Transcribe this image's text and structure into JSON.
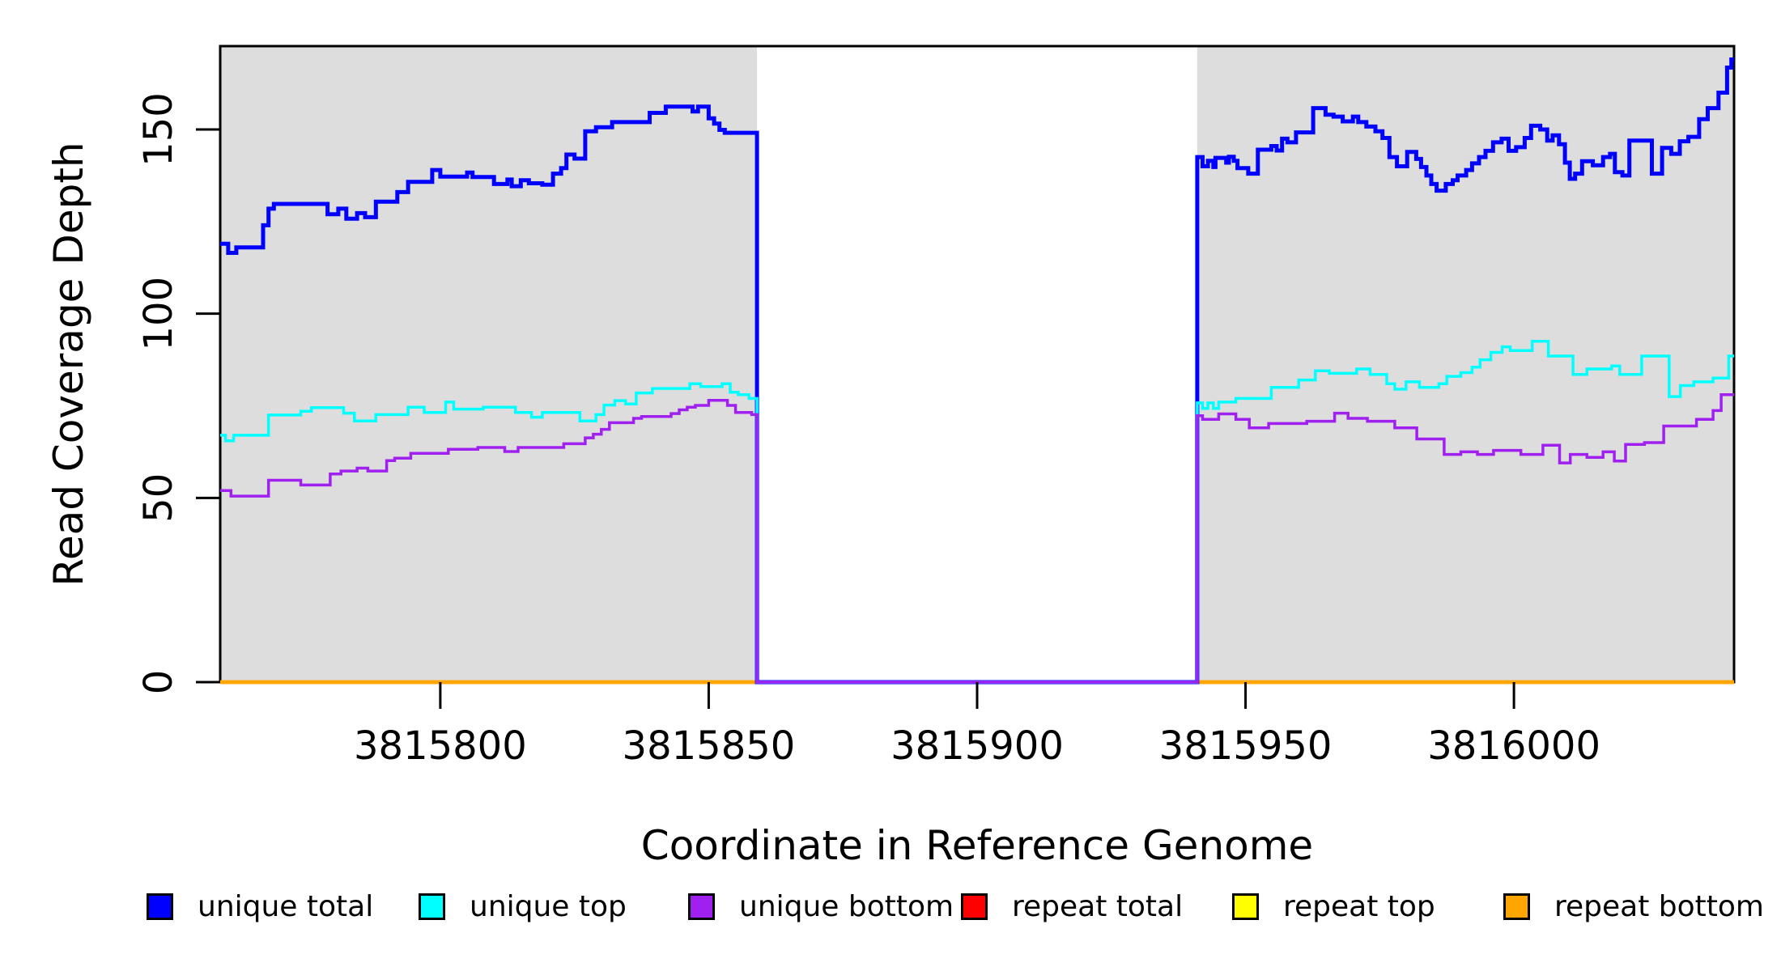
{
  "figure": {
    "background": "#ffffff",
    "plot_panel_fill": "#dddddd",
    "gap_fill": "#ffffff",
    "border_color": "#000000"
  },
  "legend": {
    "items": [
      {
        "label": "unique total",
        "color": "#0000ff"
      },
      {
        "label": "unique top",
        "color": "#00ffff"
      },
      {
        "label": "unique bottom",
        "color": "#a020f0"
      },
      {
        "label": "repeat total",
        "color": "#ff0000"
      },
      {
        "label": "repeat top",
        "color": "#ffff00"
      },
      {
        "label": "repeat bottom",
        "color": "#ffa500"
      }
    ]
  },
  "chart_data": {
    "type": "line",
    "subtype": "step-coverage",
    "title": "",
    "xlabel": "Coordinate in Reference Genome",
    "ylabel": "Read Coverage Depth",
    "x_axis": {
      "range": [
        3815759,
        3816041
      ],
      "ticks": [
        3815800,
        3815850,
        3815900,
        3815950,
        3816000
      ],
      "tick_labels": [
        "3815800",
        "3815850",
        "3815900",
        "3815950",
        "3816000"
      ]
    },
    "y_axis": {
      "range": [
        0,
        172.6
      ],
      "ticks": [
        0,
        50,
        100,
        150
      ],
      "tick_labels": [
        "0",
        "50",
        "100",
        "150"
      ]
    },
    "shaded_regions": [
      {
        "from": 3815759,
        "to": 3815859,
        "fill": "#dddddd"
      },
      {
        "from": 3815941,
        "to": 3816041,
        "fill": "#dddddd"
      }
    ],
    "zero_coverage_gap": {
      "from": 3815859,
      "to": 3815941
    },
    "series": [
      {
        "name": "repeat total",
        "color": "#ff0000",
        "width": 4.5,
        "points": [
          [
            3815759,
            0
          ]
        ]
      },
      {
        "name": "repeat top",
        "color": "#ffff00",
        "width": 4.5,
        "points": [
          [
            3815759,
            0
          ]
        ]
      },
      {
        "name": "repeat bottom",
        "color": "#ffa500",
        "width": 4.5,
        "points": [
          [
            3815759,
            0
          ]
        ]
      },
      {
        "name": "unique total",
        "color": "#0000ff",
        "width": 5,
        "points": [
          [
            3815759,
            119
          ],
          [
            3815760.5,
            116.5
          ],
          [
            3815762,
            118
          ],
          [
            3815767,
            124
          ],
          [
            3815768,
            128.5
          ],
          [
            3815769,
            129.8
          ],
          [
            3815779,
            127
          ],
          [
            3815781,
            128.5
          ],
          [
            3815782.5,
            125.8
          ],
          [
            3815784.5,
            127.3
          ],
          [
            3815786,
            126.2
          ],
          [
            3815788,
            130.4
          ],
          [
            3815792,
            133
          ],
          [
            3815794,
            135.8
          ],
          [
            3815798.5,
            139
          ],
          [
            3815800,
            137.2
          ],
          [
            3815805,
            138.3
          ],
          [
            3815806,
            137.1
          ],
          [
            3815810,
            135.2
          ],
          [
            3815812.5,
            136.4
          ],
          [
            3815813.3,
            134.6
          ],
          [
            3815815,
            136.2
          ],
          [
            3815816.5,
            135.4
          ],
          [
            3815819,
            135
          ],
          [
            3815821,
            138
          ],
          [
            3815822.5,
            139.5
          ],
          [
            3815823.5,
            143.2
          ],
          [
            3815825,
            142.1
          ],
          [
            3815827,
            149.5
          ],
          [
            3815829,
            150.6
          ],
          [
            3815832,
            152
          ],
          [
            3815839,
            154.5
          ],
          [
            3815842,
            156.2
          ],
          [
            3815847,
            154.9
          ],
          [
            3815848,
            156.2
          ],
          [
            3815850,
            153
          ],
          [
            3815851,
            151.6
          ],
          [
            3815852,
            149.9
          ],
          [
            3815853,
            149.1
          ],
          [
            3815859,
            0
          ],
          [
            3815941,
            142.5
          ],
          [
            3815942,
            140
          ],
          [
            3815943,
            141.5
          ],
          [
            3815944,
            139.8
          ],
          [
            3815944.4,
            142.3
          ],
          [
            3815946.4,
            141
          ],
          [
            3815946.9,
            142.6
          ],
          [
            3815947.8,
            141.5
          ],
          [
            3815948.5,
            139.5
          ],
          [
            3815950.5,
            138
          ],
          [
            3815952.3,
            144.5
          ],
          [
            3815954.8,
            145.5
          ],
          [
            3815955.8,
            144.3
          ],
          [
            3815956.8,
            147.5
          ],
          [
            3815957.8,
            146.5
          ],
          [
            3815959.4,
            149.2
          ],
          [
            3815962.6,
            155.8
          ],
          [
            3815964.9,
            154
          ],
          [
            3815966.4,
            153.5
          ],
          [
            3815968.1,
            152.2
          ],
          [
            3815970,
            153.5
          ],
          [
            3815971,
            152
          ],
          [
            3815972.5,
            150.8
          ],
          [
            3815974.2,
            149.5
          ],
          [
            3815975.5,
            147.7
          ],
          [
            3815976.8,
            142.5
          ],
          [
            3815978.2,
            140
          ],
          [
            3815980.1,
            143.9
          ],
          [
            3815981.8,
            142
          ],
          [
            3815982.7,
            139.8
          ],
          [
            3815983.7,
            137.5
          ],
          [
            3815984.6,
            135.2
          ],
          [
            3815985.6,
            133.4
          ],
          [
            3815987.3,
            135.2
          ],
          [
            3815988.6,
            136.2
          ],
          [
            3815989.5,
            137.5
          ],
          [
            3815991.1,
            139
          ],
          [
            3815992.2,
            140.8
          ],
          [
            3815993.5,
            142.5
          ],
          [
            3815994.7,
            144.2
          ],
          [
            3815996.1,
            146.5
          ],
          [
            3815997.7,
            147.5
          ],
          [
            3815999,
            144.2
          ],
          [
            3816000.4,
            145.2
          ],
          [
            3816002,
            147.7
          ],
          [
            3816003.2,
            151
          ],
          [
            3816004.9,
            150
          ],
          [
            3816006.2,
            147
          ],
          [
            3816007.2,
            148.4
          ],
          [
            3816008.4,
            146
          ],
          [
            3816009.5,
            141
          ],
          [
            3816010.4,
            136.6
          ],
          [
            3816011.4,
            138
          ],
          [
            3816012.7,
            141.4
          ],
          [
            3816014.7,
            140.3
          ],
          [
            3816016.6,
            142.5
          ],
          [
            3816017.9,
            143.4
          ],
          [
            3816018.8,
            138.4
          ],
          [
            3816020.2,
            137.5
          ],
          [
            3816021.5,
            147
          ],
          [
            3816025.7,
            138
          ],
          [
            3816027.6,
            145
          ],
          [
            3816029.3,
            143.4
          ],
          [
            3816030.9,
            146.8
          ],
          [
            3816032.5,
            148
          ],
          [
            3816034.5,
            152.8
          ],
          [
            3816036.1,
            155.8
          ],
          [
            3816038.1,
            160
          ],
          [
            3816039.7,
            166.8
          ],
          [
            3816040.5,
            169
          ]
        ]
      },
      {
        "name": "unique top",
        "color": "#00ffff",
        "width": 3.5,
        "points": [
          [
            3815759,
            67
          ],
          [
            3815760,
            65.5
          ],
          [
            3815761.5,
            67
          ],
          [
            3815768,
            72.5
          ],
          [
            3815774,
            73.5
          ],
          [
            3815776,
            74.5
          ],
          [
            3815782,
            73
          ],
          [
            3815784,
            70.9
          ],
          [
            3815788,
            72.6
          ],
          [
            3815794,
            74.6
          ],
          [
            3815797,
            73.2
          ],
          [
            3815801,
            76
          ],
          [
            3815802.5,
            74.1
          ],
          [
            3815808,
            74.6
          ],
          [
            3815814,
            73.2
          ],
          [
            3815817,
            71.9
          ],
          [
            3815819,
            73.2
          ],
          [
            3815826,
            70.9
          ],
          [
            3815829,
            72.6
          ],
          [
            3815830.5,
            75.2
          ],
          [
            3815832.5,
            76.4
          ],
          [
            3815834.5,
            75.5
          ],
          [
            3815836.5,
            78.5
          ],
          [
            3815839.5,
            79.7
          ],
          [
            3815846.5,
            81
          ],
          [
            3815848.5,
            80.2
          ],
          [
            3815852.5,
            81
          ],
          [
            3815854,
            78.7
          ],
          [
            3815855.5,
            78
          ],
          [
            3815857.5,
            77
          ],
          [
            3815859,
            0
          ],
          [
            3815941,
            75.8
          ],
          [
            3815942,
            74.3
          ],
          [
            3815943,
            75.8
          ],
          [
            3815944,
            74.3
          ],
          [
            3815945,
            76
          ],
          [
            3815948.2,
            77
          ],
          [
            3815954.8,
            80
          ],
          [
            3815959.9,
            82
          ],
          [
            3815963,
            84.5
          ],
          [
            3815965.6,
            83.8
          ],
          [
            3815970.7,
            85
          ],
          [
            3815973.2,
            83.5
          ],
          [
            3815976.3,
            81
          ],
          [
            3815977.8,
            79.5
          ],
          [
            3815979.9,
            81.5
          ],
          [
            3815982.4,
            80
          ],
          [
            3815986,
            81
          ],
          [
            3815987.5,
            83
          ],
          [
            3815990.1,
            84
          ],
          [
            3815992.2,
            85.5
          ],
          [
            3815993.7,
            87.5
          ],
          [
            3815995.7,
            89.5
          ],
          [
            3815997.8,
            91
          ],
          [
            3815999.3,
            90
          ],
          [
            3816003.4,
            92.5
          ],
          [
            3816006.4,
            88.5
          ],
          [
            3816011,
            83.5
          ],
          [
            3816013.6,
            85
          ],
          [
            3816018.2,
            85.8
          ],
          [
            3816019.7,
            83.5
          ],
          [
            3816023.8,
            88.5
          ],
          [
            3816028.9,
            77.5
          ],
          [
            3816031,
            80.5
          ],
          [
            3816033.5,
            81.5
          ],
          [
            3816037.1,
            82.5
          ],
          [
            3816040,
            88.5
          ]
        ]
      },
      {
        "name": "unique bottom",
        "color": "#a020f0",
        "width": 3.5,
        "points": [
          [
            3815759,
            52
          ],
          [
            3815761,
            50.5
          ],
          [
            3815768,
            54.8
          ],
          [
            3815774,
            53.5
          ],
          [
            3815779.5,
            56.5
          ],
          [
            3815781.5,
            57.3
          ],
          [
            3815784.5,
            58.1
          ],
          [
            3815786.5,
            57.3
          ],
          [
            3815790,
            60.1
          ],
          [
            3815791.5,
            60.8
          ],
          [
            3815794.5,
            62.1
          ],
          [
            3815801.5,
            63.2
          ],
          [
            3815807,
            63.7
          ],
          [
            3815812,
            62.6
          ],
          [
            3815814.5,
            63.7
          ],
          [
            3815823,
            64.7
          ],
          [
            3815827,
            66.3
          ],
          [
            3815828.5,
            67.3
          ],
          [
            3815830,
            68.6
          ],
          [
            3815831.5,
            70.4
          ],
          [
            3815836,
            71.6
          ],
          [
            3815837.5,
            72.1
          ],
          [
            3815843,
            72.9
          ],
          [
            3815844.5,
            73.9
          ],
          [
            3815846,
            74.6
          ],
          [
            3815847.5,
            75.1
          ],
          [
            3815850,
            76.5
          ],
          [
            3815853.5,
            75.1
          ],
          [
            3815855,
            73.2
          ],
          [
            3815858,
            72.6
          ],
          [
            3815859,
            0
          ],
          [
            3815941,
            72.3
          ],
          [
            3815942,
            71.3
          ],
          [
            3815945,
            72.8
          ],
          [
            3815948.2,
            71.3
          ],
          [
            3815950.7,
            69
          ],
          [
            3815954.3,
            70.2
          ],
          [
            3815961.4,
            70.8
          ],
          [
            3815966.6,
            73
          ],
          [
            3815969.1,
            71.6
          ],
          [
            3815972.7,
            70.8
          ],
          [
            3815977.8,
            69
          ],
          [
            3815981.9,
            66
          ],
          [
            3815987,
            61.8
          ],
          [
            3815990.1,
            62.5
          ],
          [
            3815993.2,
            61.8
          ],
          [
            3815996.2,
            62.9
          ],
          [
            3816001.3,
            61.8
          ],
          [
            3816005.4,
            64.3
          ],
          [
            3816008.5,
            59.5
          ],
          [
            3816010.5,
            61.8
          ],
          [
            3816013.6,
            61
          ],
          [
            3816016.6,
            62.5
          ],
          [
            3816018.7,
            60
          ],
          [
            3816020.8,
            64.5
          ],
          [
            3816024.3,
            65
          ],
          [
            3816027.9,
            69.5
          ],
          [
            3816034,
            71.3
          ],
          [
            3816037.1,
            73.7
          ],
          [
            3816038.6,
            78
          ]
        ]
      }
    ]
  }
}
